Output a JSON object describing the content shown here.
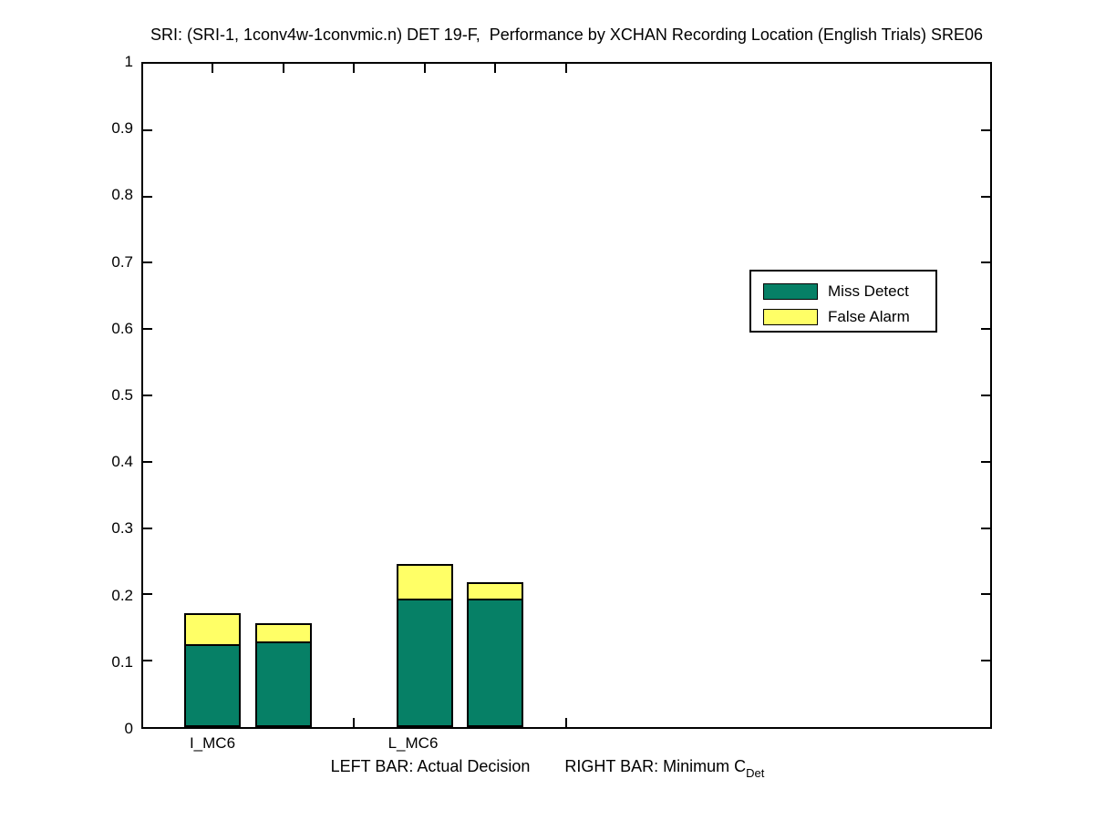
{
  "figure": {
    "title": "SRI: (SRI-1, 1conv4w-1convmic.n) DET 19-F,  Performance by XCHAN Recording Location (English Trials) SRE06",
    "caption": {
      "left": "LEFT BAR: Actual Decision",
      "right": "RIGHT BAR: Minimum C",
      "subscript": "Det"
    }
  },
  "colors": {
    "miss_detect": "#068066",
    "false_alarm": "#FFFF66",
    "axis": "#000000",
    "background": "#FFFFFF"
  },
  "chart_data": {
    "type": "bar",
    "stacked": true,
    "title": "SRI: (SRI-1, 1conv4w-1convmic.n) DET 19-F,  Performance by XCHAN Recording Location (English Trials) SRE06",
    "categories": [
      "I_MC6",
      "L_MC6"
    ],
    "bar_meaning": {
      "left_bar": "Actual Decision",
      "right_bar": "Minimum CDet"
    },
    "ylim": [
      0,
      1
    ],
    "ytick_labels": [
      "0",
      "0.1",
      "0.2",
      "0.3",
      "0.4",
      "0.5",
      "0.6",
      "0.7",
      "0.8",
      "0.9",
      "1"
    ],
    "grid": false,
    "legend": {
      "position": "inside-upper-right",
      "entries": [
        "Miss Detect",
        "False Alarm"
      ]
    },
    "series": [
      {
        "name": "Miss Detect",
        "color": "#068066",
        "values": [
          0.122,
          0.125,
          0.19,
          0.19
        ]
      },
      {
        "name": "False Alarm",
        "color": "#FFFF66",
        "values": [
          0.049,
          0.031,
          0.055,
          0.027
        ]
      }
    ],
    "bars": [
      {
        "category": "I_MC6",
        "bar": "Actual Decision",
        "miss_detect": 0.122,
        "false_alarm": 0.049,
        "total": 0.171
      },
      {
        "category": "I_MC6",
        "bar": "Minimum CDet",
        "miss_detect": 0.125,
        "false_alarm": 0.031,
        "total": 0.156
      },
      {
        "category": "L_MC6",
        "bar": "Actual Decision",
        "miss_detect": 0.19,
        "false_alarm": 0.055,
        "total": 0.245
      },
      {
        "category": "L_MC6",
        "bar": "Minimum CDet",
        "miss_detect": 0.19,
        "false_alarm": 0.027,
        "total": 0.217
      }
    ]
  }
}
